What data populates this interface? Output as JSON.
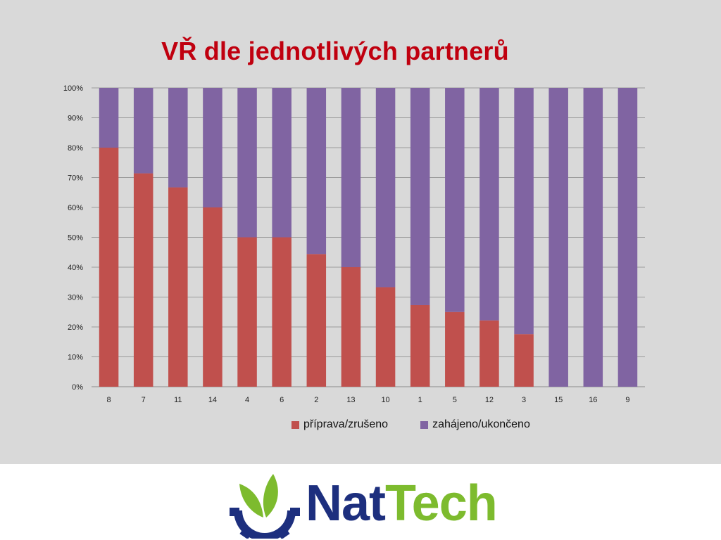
{
  "slide": {
    "title": "VŘ dle jednotlivých partnerů",
    "brand": {
      "part1": "Nat",
      "part2": "Tech",
      "primary_color": "#1d2f7e",
      "accent_color": "#7dbb2e"
    }
  },
  "chart_data": {
    "type": "bar",
    "stacked": true,
    "percent": true,
    "categories": [
      "8",
      "7",
      "11",
      "14",
      "4",
      "6",
      "2",
      "13",
      "10",
      "1",
      "5",
      "12",
      "3",
      "15",
      "16",
      "9"
    ],
    "series": [
      {
        "name": "příprava/zrušeno",
        "color": "#c0504d",
        "values": [
          80,
          71.4,
          66.7,
          60,
          50,
          50,
          44.4,
          40,
          33.3,
          27.3,
          25,
          22.2,
          17.6,
          0,
          0,
          0
        ]
      },
      {
        "name": "zahájeno/ukončeno",
        "color": "#8064a2",
        "values": [
          20,
          28.6,
          33.3,
          40,
          50,
          50,
          55.6,
          60,
          66.7,
          72.7,
          75,
          77.8,
          82.4,
          100,
          100,
          100
        ]
      }
    ],
    "title": "VŘ dle jednotlivých partnerů",
    "xlabel": "",
    "ylabel": "",
    "ylim": [
      0,
      100
    ],
    "y_ticks": [
      "0%",
      "10%",
      "20%",
      "30%",
      "40%",
      "50%",
      "60%",
      "70%",
      "80%",
      "90%",
      "100%"
    ],
    "grid": true,
    "legend": "bottom"
  }
}
